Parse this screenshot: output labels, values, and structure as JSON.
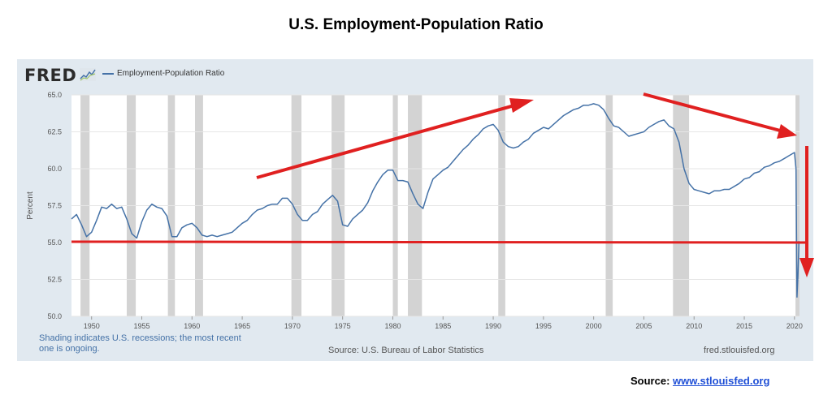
{
  "page": {
    "title": "U.S. Employment-Population Ratio",
    "source_label": "Source: ",
    "source_link": "www.stlouisfed.org"
  },
  "fred": {
    "logo": "FRED",
    "logo_icon": "sparkline-icon",
    "legend_label": "Employment-Population Ratio",
    "shading_note": "Shading indicates U.S. recessions; the most recent one is ongoing.",
    "source": "Source: U.S. Bureau of Labor Statistics",
    "url": "fred.stlouisfed.org"
  },
  "colors": {
    "panel_bg": "#e1e9f0",
    "series": "#4572a7",
    "recession": "#d3d3d3",
    "annotation": "#e02020"
  },
  "chart_data": {
    "type": "line",
    "ylabel": "Percent",
    "xlabel": "",
    "xlim": [
      1948,
      2020.5
    ],
    "ylim": [
      50.0,
      65.0
    ],
    "yticks": [
      "50.0",
      "52.5",
      "55.0",
      "57.5",
      "60.0",
      "62.5",
      "65.0"
    ],
    "xticks": [
      "1950",
      "1955",
      "1960",
      "1965",
      "1970",
      "1975",
      "1980",
      "1985",
      "1990",
      "1995",
      "2000",
      "2005",
      "2010",
      "2015",
      "2020"
    ],
    "grid": true,
    "legend": "top-left",
    "recessions": [
      [
        1948.9,
        1949.8
      ],
      [
        1953.5,
        1954.4
      ],
      [
        1957.6,
        1958.3
      ],
      [
        1960.3,
        1961.1
      ],
      [
        1969.9,
        1970.9
      ],
      [
        1973.9,
        1975.2
      ],
      [
        1980.0,
        1980.5
      ],
      [
        1981.5,
        1982.9
      ],
      [
        1990.5,
        1991.2
      ],
      [
        2001.2,
        2001.9
      ],
      [
        2007.9,
        2009.5
      ],
      [
        2020.1,
        2020.5
      ]
    ],
    "series": [
      {
        "name": "Employment-Population Ratio",
        "x": [
          1948.0,
          1948.5,
          1949.0,
          1949.5,
          1950.0,
          1950.5,
          1951.0,
          1951.5,
          1952.0,
          1952.5,
          1953.0,
          1953.5,
          1954.0,
          1954.5,
          1955.0,
          1955.5,
          1956.0,
          1956.5,
          1957.0,
          1957.5,
          1958.0,
          1958.5,
          1959.0,
          1959.5,
          1960.0,
          1960.5,
          1961.0,
          1961.5,
          1962.0,
          1962.5,
          1963.0,
          1963.5,
          1964.0,
          1964.5,
          1965.0,
          1965.5,
          1966.0,
          1966.5,
          1967.0,
          1967.5,
          1968.0,
          1968.5,
          1969.0,
          1969.5,
          1970.0,
          1970.5,
          1971.0,
          1971.5,
          1972.0,
          1972.5,
          1973.0,
          1973.5,
          1974.0,
          1974.5,
          1975.0,
          1975.5,
          1976.0,
          1976.5,
          1977.0,
          1977.5,
          1978.0,
          1978.5,
          1979.0,
          1979.5,
          1980.0,
          1980.5,
          1981.0,
          1981.5,
          1982.0,
          1982.5,
          1983.0,
          1983.5,
          1984.0,
          1984.5,
          1985.0,
          1985.5,
          1986.0,
          1986.5,
          1987.0,
          1987.5,
          1988.0,
          1988.5,
          1989.0,
          1989.5,
          1990.0,
          1990.5,
          1991.0,
          1991.5,
          1992.0,
          1992.5,
          1993.0,
          1993.5,
          1994.0,
          1994.5,
          1995.0,
          1995.5,
          1996.0,
          1996.5,
          1997.0,
          1997.5,
          1998.0,
          1998.5,
          1999.0,
          1999.5,
          2000.0,
          2000.5,
          2001.0,
          2001.5,
          2002.0,
          2002.5,
          2003.0,
          2003.5,
          2004.0,
          2004.5,
          2005.0,
          2005.5,
          2006.0,
          2006.5,
          2007.0,
          2007.5,
          2008.0,
          2008.5,
          2009.0,
          2009.5,
          2010.0,
          2010.5,
          2011.0,
          2011.5,
          2012.0,
          2012.5,
          2013.0,
          2013.5,
          2014.0,
          2014.5,
          2015.0,
          2015.5,
          2016.0,
          2016.5,
          2017.0,
          2017.5,
          2018.0,
          2018.5,
          2019.0,
          2019.5,
          2020.0,
          2020.15,
          2020.25,
          2020.35,
          2020.45
        ],
        "values": [
          56.6,
          56.9,
          56.2,
          55.4,
          55.7,
          56.5,
          57.4,
          57.3,
          57.6,
          57.3,
          57.4,
          56.6,
          55.6,
          55.3,
          56.4,
          57.2,
          57.6,
          57.4,
          57.3,
          56.8,
          55.4,
          55.4,
          56.0,
          56.2,
          56.3,
          56.0,
          55.5,
          55.4,
          55.5,
          55.4,
          55.5,
          55.6,
          55.7,
          56.0,
          56.3,
          56.5,
          56.9,
          57.2,
          57.3,
          57.5,
          57.6,
          57.6,
          58.0,
          58.0,
          57.6,
          56.9,
          56.5,
          56.5,
          56.9,
          57.1,
          57.6,
          57.9,
          58.2,
          57.8,
          56.2,
          56.1,
          56.6,
          56.9,
          57.2,
          57.7,
          58.5,
          59.1,
          59.6,
          59.9,
          59.9,
          59.2,
          59.2,
          59.1,
          58.3,
          57.6,
          57.3,
          58.4,
          59.3,
          59.6,
          59.9,
          60.1,
          60.5,
          60.9,
          61.3,
          61.6,
          62.0,
          62.3,
          62.7,
          62.9,
          63.0,
          62.6,
          61.8,
          61.5,
          61.4,
          61.5,
          61.8,
          62.0,
          62.4,
          62.6,
          62.8,
          62.7,
          63.0,
          63.3,
          63.6,
          63.8,
          64.0,
          64.1,
          64.3,
          64.3,
          64.4,
          64.3,
          64.0,
          63.4,
          62.9,
          62.8,
          62.5,
          62.2,
          62.3,
          62.4,
          62.5,
          62.8,
          63.0,
          63.2,
          63.3,
          62.9,
          62.7,
          61.8,
          60.0,
          59.0,
          58.6,
          58.5,
          58.4,
          58.3,
          58.5,
          58.5,
          58.6,
          58.6,
          58.8,
          59.0,
          59.3,
          59.4,
          59.7,
          59.8,
          60.1,
          60.2,
          60.4,
          60.5,
          60.7,
          60.9,
          61.1,
          60.0,
          51.3,
          52.8,
          55.1
        ]
      }
    ]
  }
}
